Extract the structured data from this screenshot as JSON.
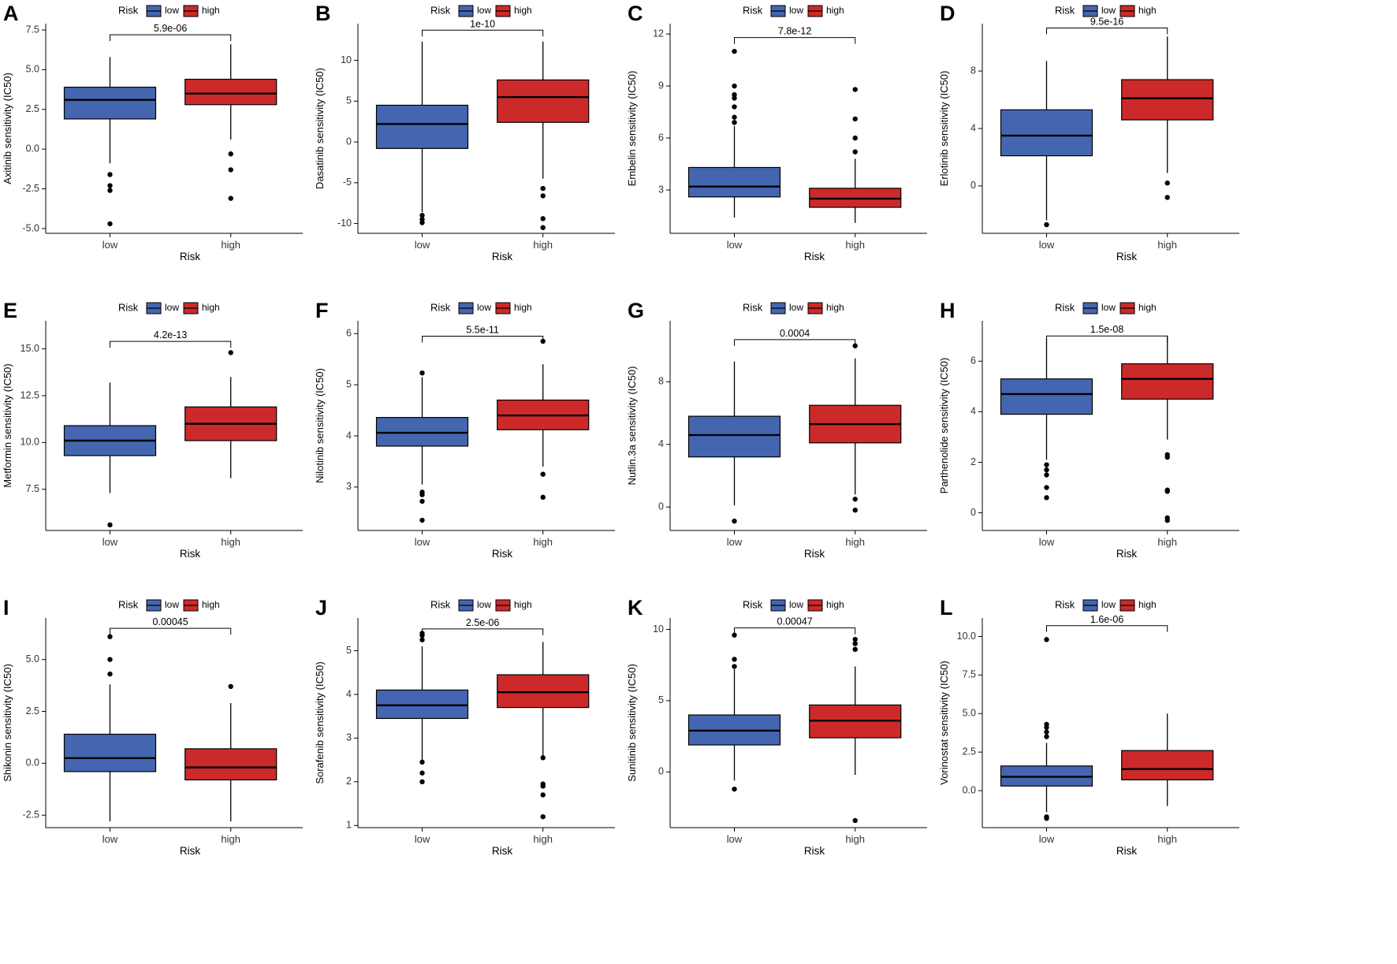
{
  "figure": {
    "legend_title": "Risk",
    "legend_labels": [
      "low",
      "high"
    ],
    "colors": {
      "low": "#4466b0",
      "high": "#cc2a2a",
      "outline": "#000000"
    }
  },
  "chart_data": [
    {
      "type": "box",
      "panel": "A",
      "title": "",
      "xlabel": "Risk",
      "ylabel": "Axitinib sensitivity (IC50)",
      "categories": [
        "low",
        "high"
      ],
      "ylim": [
        -5.3,
        7.9
      ],
      "yticks": [
        -5.0,
        -2.5,
        0.0,
        2.5,
        5.0,
        7.5
      ],
      "ytick_labels": [
        "-5.0",
        "-2.5",
        "0.0",
        "2.5",
        "5.0",
        "7.5"
      ],
      "pvalue": "5.9e-06",
      "bracket_y": 7.2,
      "series": [
        {
          "name": "low",
          "q1": 1.9,
          "median": 3.1,
          "q3": 3.9,
          "whisker_low": -0.9,
          "whisker_high": 5.8,
          "outliers": [
            -1.6,
            -2.3,
            -2.6,
            -4.7
          ]
        },
        {
          "name": "high",
          "q1": 2.8,
          "median": 3.5,
          "q3": 4.4,
          "whisker_low": 0.6,
          "whisker_high": 6.6,
          "outliers": [
            -0.3,
            -1.3,
            -3.1
          ]
        }
      ]
    },
    {
      "type": "box",
      "panel": "B",
      "title": "",
      "xlabel": "Risk",
      "ylabel": "Dasatinib sensitivity (IC50)",
      "categories": [
        "low",
        "high"
      ],
      "ylim": [
        -11.2,
        14.5
      ],
      "yticks": [
        -10,
        -5,
        0,
        5,
        10
      ],
      "ytick_labels": [
        "-10",
        "-5",
        "0",
        "5",
        "10"
      ],
      "pvalue": "1e-10",
      "bracket_y": 13.7,
      "series": [
        {
          "name": "low",
          "q1": -0.8,
          "median": 2.2,
          "q3": 4.5,
          "whisker_low": -8.6,
          "whisker_high": 12.3,
          "outliers": [
            -9.0,
            -9.5,
            -9.9
          ]
        },
        {
          "name": "high",
          "q1": 2.4,
          "median": 5.5,
          "q3": 7.6,
          "whisker_low": -4.5,
          "whisker_high": 12.3,
          "outliers": [
            -5.7,
            -6.6,
            -9.4,
            -10.5
          ]
        }
      ]
    },
    {
      "type": "box",
      "panel": "C",
      "title": "",
      "xlabel": "Risk",
      "ylabel": "Embelin sensitivity (IC50)",
      "categories": [
        "low",
        "high"
      ],
      "ylim": [
        0.5,
        12.6
      ],
      "yticks": [
        3,
        6,
        9,
        12
      ],
      "ytick_labels": [
        "3",
        "6",
        "9",
        "12"
      ],
      "pvalue": "7.8e-12",
      "bracket_y": 11.8,
      "series": [
        {
          "name": "low",
          "q1": 2.6,
          "median": 3.2,
          "q3": 4.3,
          "whisker_low": 1.4,
          "whisker_high": 6.7,
          "outliers": [
            6.9,
            7.2,
            7.8,
            8.3,
            8.5,
            9.0,
            11.0
          ]
        },
        {
          "name": "high",
          "q1": 2.0,
          "median": 2.5,
          "q3": 3.1,
          "whisker_low": 1.1,
          "whisker_high": 4.8,
          "outliers": [
            5.2,
            6.0,
            7.1,
            8.8
          ]
        }
      ]
    },
    {
      "type": "box",
      "panel": "D",
      "title": "",
      "xlabel": "Risk",
      "ylabel": "Erlotinib sensitivity (IC50)",
      "categories": [
        "low",
        "high"
      ],
      "ylim": [
        -3.3,
        11.3
      ],
      "yticks": [
        0,
        4,
        8
      ],
      "ytick_labels": [
        "0",
        "4",
        "8"
      ],
      "pvalue": "9.5e-16",
      "bracket_y": 11.0,
      "series": [
        {
          "name": "low",
          "q1": 2.1,
          "median": 3.5,
          "q3": 5.3,
          "whisker_low": -2.4,
          "whisker_high": 8.7,
          "outliers": [
            -2.7
          ]
        },
        {
          "name": "high",
          "q1": 4.6,
          "median": 6.1,
          "q3": 7.4,
          "whisker_low": 0.9,
          "whisker_high": 10.4,
          "outliers": [
            0.2,
            -0.8
          ]
        }
      ]
    },
    {
      "type": "box",
      "panel": "E",
      "title": "",
      "xlabel": "Risk",
      "ylabel": "Metformin sensitivity (IC50)",
      "categories": [
        "low",
        "high"
      ],
      "ylim": [
        5.3,
        16.5
      ],
      "yticks": [
        7.5,
        10.0,
        12.5,
        15.0
      ],
      "ytick_labels": [
        "7.5",
        "10.0",
        "12.5",
        "15.0"
      ],
      "pvalue": "4.2e-13",
      "bracket_y": 15.4,
      "series": [
        {
          "name": "low",
          "q1": 9.3,
          "median": 10.1,
          "q3": 10.9,
          "whisker_low": 7.3,
          "whisker_high": 13.2,
          "outliers": [
            5.6
          ]
        },
        {
          "name": "high",
          "q1": 10.1,
          "median": 11.0,
          "q3": 11.9,
          "whisker_low": 8.1,
          "whisker_high": 13.5,
          "outliers": [
            14.8
          ]
        }
      ]
    },
    {
      "type": "box",
      "panel": "F",
      "title": "",
      "xlabel": "Risk",
      "ylabel": "Nilotinib sensitivity (IC50)",
      "categories": [
        "low",
        "high"
      ],
      "ylim": [
        2.15,
        6.25
      ],
      "yticks": [
        3,
        4,
        5,
        6
      ],
      "ytick_labels": [
        "3",
        "4",
        "5",
        "6"
      ],
      "pvalue": "5.5e-11",
      "bracket_y": 5.95,
      "series": [
        {
          "name": "low",
          "q1": 3.8,
          "median": 4.06,
          "q3": 4.36,
          "whisker_low": 3.05,
          "whisker_high": 5.15,
          "outliers": [
            2.9,
            2.85,
            2.72,
            2.35,
            5.23
          ]
        },
        {
          "name": "high",
          "q1": 4.12,
          "median": 4.4,
          "q3": 4.7,
          "whisker_low": 3.4,
          "whisker_high": 5.4,
          "outliers": [
            3.25,
            2.8,
            5.85
          ]
        }
      ]
    },
    {
      "type": "box",
      "panel": "G",
      "title": "",
      "xlabel": "Risk",
      "ylabel": "Nutlin.3a sensitivity (IC50)",
      "categories": [
        "low",
        "high"
      ],
      "ylim": [
        -1.5,
        11.9
      ],
      "yticks": [
        0,
        4,
        8
      ],
      "ytick_labels": [
        "0",
        "4",
        "8"
      ],
      "pvalue": "0.0004",
      "bracket_y": 10.7,
      "series": [
        {
          "name": "low",
          "q1": 3.2,
          "median": 4.6,
          "q3": 5.8,
          "whisker_low": 0.1,
          "whisker_high": 9.3,
          "outliers": [
            -0.9
          ]
        },
        {
          "name": "high",
          "q1": 4.1,
          "median": 5.3,
          "q3": 6.5,
          "whisker_low": 0.8,
          "whisker_high": 9.5,
          "outliers": [
            0.5,
            -0.2,
            10.3
          ]
        }
      ]
    },
    {
      "type": "box",
      "panel": "H",
      "title": "",
      "xlabel": "Risk",
      "ylabel": "Parthenolide sensitivity (IC50)",
      "categories": [
        "low",
        "high"
      ],
      "ylim": [
        -0.7,
        7.6
      ],
      "yticks": [
        0,
        2,
        4,
        6
      ],
      "ytick_labels": [
        "0",
        "2",
        "4",
        "6"
      ],
      "pvalue": "1.5e-08",
      "bracket_y": 7.0,
      "series": [
        {
          "name": "low",
          "q1": 3.9,
          "median": 4.7,
          "q3": 5.3,
          "whisker_low": 2.1,
          "whisker_high": 6.9,
          "outliers": [
            1.9,
            1.7,
            1.5,
            1.0,
            0.6
          ]
        },
        {
          "name": "high",
          "q1": 4.5,
          "median": 5.3,
          "q3": 5.9,
          "whisker_low": 2.9,
          "whisker_high": 7.0,
          "outliers": [
            2.3,
            2.2,
            0.9,
            0.85,
            -0.2,
            -0.3
          ]
        }
      ]
    },
    {
      "type": "box",
      "panel": "I",
      "title": "",
      "xlabel": "Risk",
      "ylabel": "Shikonin sensitivity (IC50)",
      "categories": [
        "low",
        "high"
      ],
      "ylim": [
        -3.1,
        7.0
      ],
      "yticks": [
        -2.5,
        0.0,
        2.5,
        5.0
      ],
      "ytick_labels": [
        "-2.5",
        "0.0",
        "2.5",
        "5.0"
      ],
      "pvalue": "0.00045",
      "bracket_y": 6.5,
      "series": [
        {
          "name": "low",
          "q1": -0.4,
          "median": 0.25,
          "q3": 1.4,
          "whisker_low": -2.8,
          "whisker_high": 3.8,
          "outliers": [
            4.3,
            5.0,
            6.1
          ]
        },
        {
          "name": "high",
          "q1": -0.8,
          "median": -0.2,
          "q3": 0.7,
          "whisker_low": -2.8,
          "whisker_high": 2.9,
          "outliers": [
            3.7
          ]
        }
      ]
    },
    {
      "type": "box",
      "panel": "J",
      "title": "",
      "xlabel": "Risk",
      "ylabel": "Sorafenib sensitivity (IC50)",
      "categories": [
        "low",
        "high"
      ],
      "ylim": [
        0.95,
        5.75
      ],
      "yticks": [
        1,
        2,
        3,
        4,
        5
      ],
      "ytick_labels": [
        "1",
        "2",
        "3",
        "4",
        "5"
      ],
      "pvalue": "2.5e-06",
      "bracket_y": 5.5,
      "series": [
        {
          "name": "low",
          "q1": 3.45,
          "median": 3.75,
          "q3": 4.1,
          "whisker_low": 2.5,
          "whisker_high": 5.1,
          "outliers": [
            2.45,
            2.2,
            2.0,
            5.25,
            5.35,
            5.4
          ]
        },
        {
          "name": "high",
          "q1": 3.7,
          "median": 4.05,
          "q3": 4.45,
          "whisker_low": 2.6,
          "whisker_high": 5.2,
          "outliers": [
            2.55,
            1.95,
            1.9,
            1.7,
            1.2
          ]
        }
      ]
    },
    {
      "type": "box",
      "panel": "K",
      "title": "",
      "xlabel": "Risk",
      "ylabel": "Sunitinib sensitivity (IC50)",
      "categories": [
        "low",
        "high"
      ],
      "ylim": [
        -3.9,
        10.8
      ],
      "yticks": [
        0,
        5,
        10
      ],
      "ytick_labels": [
        "0",
        "5",
        "10"
      ],
      "pvalue": "0.00047",
      "bracket_y": 10.1,
      "series": [
        {
          "name": "low",
          "q1": 1.9,
          "median": 2.9,
          "q3": 4.0,
          "whisker_low": -0.6,
          "whisker_high": 7.2,
          "outliers": [
            7.4,
            7.9,
            9.6,
            -1.2
          ]
        },
        {
          "name": "high",
          "q1": 2.4,
          "median": 3.6,
          "q3": 4.7,
          "whisker_low": -0.2,
          "whisker_high": 7.4,
          "outliers": [
            8.6,
            9.0,
            9.3,
            -3.4
          ]
        }
      ]
    },
    {
      "type": "box",
      "panel": "L",
      "title": "",
      "xlabel": "Risk",
      "ylabel": "Vorinostat sensitivity (IC50)",
      "categories": [
        "low",
        "high"
      ],
      "ylim": [
        -2.4,
        11.2
      ],
      "yticks": [
        0.0,
        2.5,
        5.0,
        7.5,
        10.0
      ],
      "ytick_labels": [
        "0.0",
        "2.5",
        "5.0",
        "7.5",
        "10.0"
      ],
      "pvalue": "1.6e-06",
      "bracket_y": 10.7,
      "series": [
        {
          "name": "low",
          "q1": 0.3,
          "median": 0.9,
          "q3": 1.6,
          "whisker_low": -1.4,
          "whisker_high": 3.1,
          "outliers": [
            3.5,
            3.8,
            4.1,
            4.3,
            9.8,
            -1.7,
            -1.8
          ]
        },
        {
          "name": "high",
          "q1": 0.7,
          "median": 1.4,
          "q3": 2.6,
          "whisker_low": -1.0,
          "whisker_high": 5.0,
          "outliers": []
        }
      ]
    }
  ]
}
